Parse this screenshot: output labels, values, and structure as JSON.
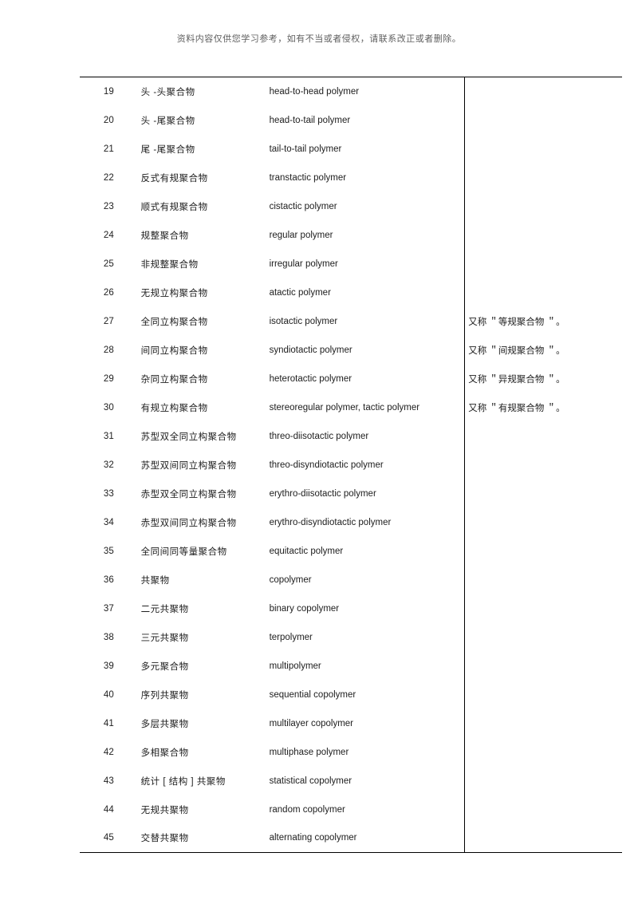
{
  "header_note": "资料内容仅供您学习参考，如有不当或者侵权，请联系改正或者删除。",
  "columns": {
    "num_width": 70,
    "cn_width": 155,
    "en_width": 240,
    "note_width": 190
  },
  "rows": [
    {
      "num": "19",
      "cn": "头 -头聚合物",
      "en": "head-to-head polymer",
      "note": ""
    },
    {
      "num": "20",
      "cn": "头 -尾聚合物",
      "en": "head-to-tail polymer",
      "note": ""
    },
    {
      "num": "21",
      "cn": "尾 -尾聚合物",
      "en": "tail-to-tail polymer",
      "note": ""
    },
    {
      "num": "22",
      "cn": "反式有规聚合物",
      "en": "transtactic polymer",
      "note": ""
    },
    {
      "num": "23",
      "cn": "顺式有规聚合物",
      "en": "cistactic polymer",
      "note": ""
    },
    {
      "num": "24",
      "cn": "规整聚合物",
      "en": "regular polymer",
      "note": ""
    },
    {
      "num": "25",
      "cn": "非规整聚合物",
      "en": "irregular polymer",
      "note": ""
    },
    {
      "num": "26",
      "cn": "无规立构聚合物",
      "en": "atactic polymer",
      "note": ""
    },
    {
      "num": "27",
      "cn": "全同立构聚合物",
      "en": "isotactic polymer",
      "note": "又称 ＂等规聚合物 ＂。"
    },
    {
      "num": "28",
      "cn": "间同立构聚合物",
      "en": "syndiotactic polymer",
      "note": "又称 ＂间规聚合物 ＂。"
    },
    {
      "num": "29",
      "cn": "杂同立构聚合物",
      "en": "heterotactic polymer",
      "note": "又称 ＂异规聚合物 ＂。"
    },
    {
      "num": "30",
      "cn": "有规立构聚合物",
      "en": "stereoregular polymer, tactic polymer",
      "note": "又称 ＂有规聚合物 ＂。"
    },
    {
      "num": "31",
      "cn": "苏型双全同立构聚合物",
      "en": "threo-diisotactic polymer",
      "note": ""
    },
    {
      "num": "32",
      "cn": "苏型双间同立构聚合物",
      "en": "threo-disyndiotactic polymer",
      "note": ""
    },
    {
      "num": "33",
      "cn": "赤型双全同立构聚合物",
      "en": "erythro-diisotactic polymer",
      "note": ""
    },
    {
      "num": "34",
      "cn": "赤型双间同立构聚合物",
      "en": "erythro-disyndiotactic polymer",
      "note": ""
    },
    {
      "num": "35",
      "cn": "全同间同等量聚合物",
      "en": "equitactic polymer",
      "note": ""
    },
    {
      "num": "36",
      "cn": "共聚物",
      "en": "copolymer",
      "note": ""
    },
    {
      "num": "37",
      "cn": "二元共聚物",
      "en": "binary copolymer",
      "note": ""
    },
    {
      "num": "38",
      "cn": "三元共聚物",
      "en": "terpolymer",
      "note": ""
    },
    {
      "num": "39",
      "cn": "多元聚合物",
      "en": "multipolymer",
      "note": ""
    },
    {
      "num": "40",
      "cn": "序列共聚物",
      "en": "sequential copolymer",
      "note": ""
    },
    {
      "num": "41",
      "cn": "多层共聚物",
      "en": "multilayer copolymer",
      "note": ""
    },
    {
      "num": "42",
      "cn": "多相聚合物",
      "en": "multiphase polymer",
      "note": ""
    },
    {
      "num": "43",
      "cn": "统计 [ 结构 ] 共聚物",
      "en": "statistical copolymer",
      "note": ""
    },
    {
      "num": "44",
      "cn": "无规共聚物",
      "en": "random copolymer",
      "note": ""
    },
    {
      "num": "45",
      "cn": "交替共聚物",
      "en": "alternating copolymer",
      "note": ""
    }
  ]
}
